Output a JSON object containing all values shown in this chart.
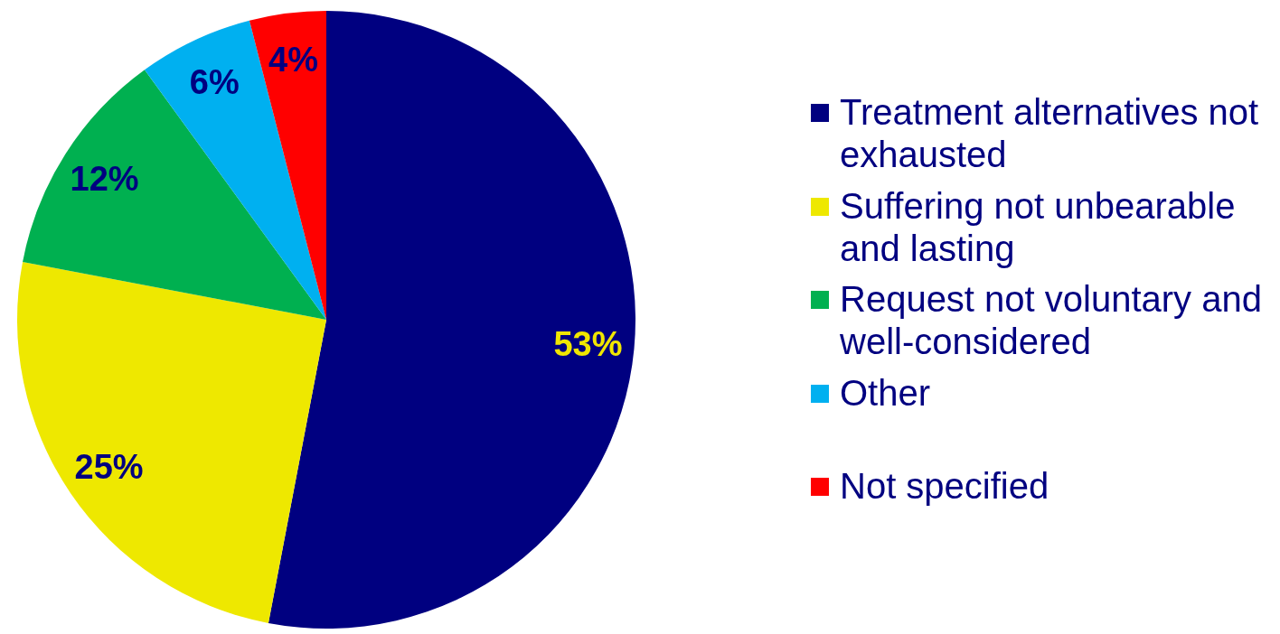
{
  "chart_data": {
    "type": "pie",
    "categories": [
      "Treatment alternatives not exhausted",
      "Suffering not unbearable and lasting",
      "Request not voluntary and well-considered",
      "Other",
      "Not specified"
    ],
    "values": [
      53,
      25,
      12,
      6,
      4
    ],
    "colors": [
      "#000080",
      "#eee800",
      "#00b050",
      "#00b0f0",
      "#ff0000"
    ],
    "value_labels": [
      "53%",
      "25%",
      "12%",
      "6%",
      "4%"
    ],
    "legend": "right"
  }
}
